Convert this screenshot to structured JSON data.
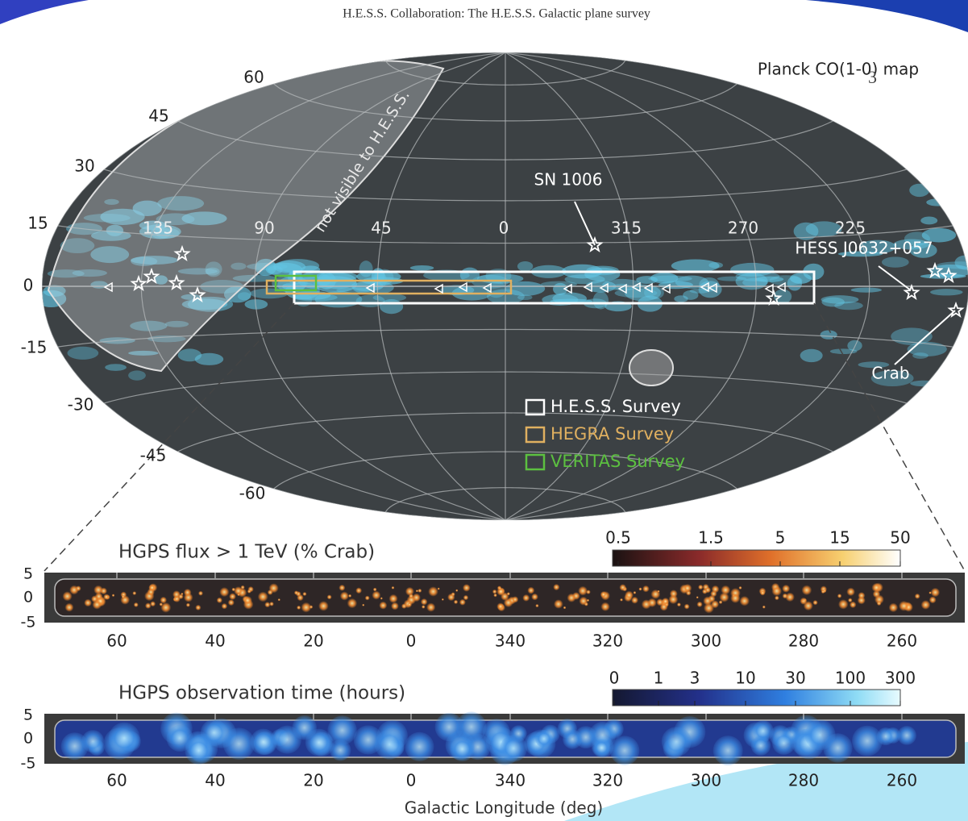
{
  "header": "H.E.S.S. Collaboration: The H.E.S.S. Galactic plane survey",
  "page_number": "3",
  "map": {
    "title": "Planck CO(1-0) map",
    "region_label": "not visible to H.E.S.S.",
    "lat_labels": [
      "60",
      "45",
      "30",
      "15",
      "0",
      "-15",
      "-30",
      "-45",
      "-60"
    ],
    "lon_labels": [
      "135",
      "90",
      "45",
      "0",
      "315",
      "270",
      "225"
    ],
    "annotations": [
      "SN 1006",
      "HESS J0632+057",
      "Crab"
    ],
    "legend": [
      "H.E.S.S. Survey",
      "HEGRA Survey",
      "VERITAS Survey"
    ]
  },
  "panels": [
    {
      "title": "HGPS flux > 1 TeV (% Crab)",
      "colorbar_ticks": [
        "0.5",
        "1.5",
        "5",
        "15",
        "50"
      ],
      "yticks": [
        "5",
        "0",
        "-5"
      ],
      "xticks": [
        "60",
        "40",
        "20",
        "0",
        "340",
        "320",
        "300",
        "280",
        "260"
      ]
    },
    {
      "title": "HGPS observation time (hours)",
      "colorbar_ticks": [
        "0",
        "1",
        "3",
        "10",
        "30",
        "100",
        "300"
      ],
      "yticks": [
        "5",
        "0",
        "-5"
      ],
      "xticks": [
        "60",
        "40",
        "20",
        "0",
        "340",
        "320",
        "300",
        "280",
        "260"
      ]
    }
  ],
  "x_axis_label": "Galactic Longitude (deg)"
}
